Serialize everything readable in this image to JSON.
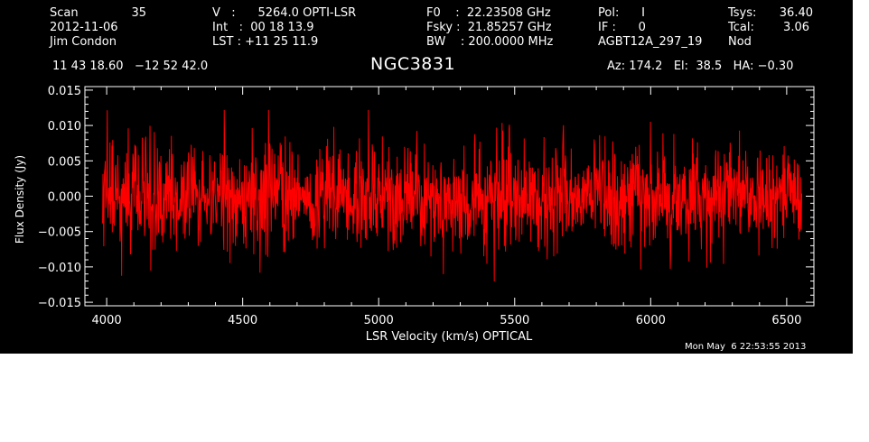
{
  "header": {
    "scan_label": "Scan",
    "scan_value": "35",
    "date": "2012-11-06",
    "observer": "Jim Condon",
    "velocity": "V   :      5264.0 OPTI-LSR",
    "integration": "Int   :  00 18 13.9",
    "lst": "LST : +11 25 11.9",
    "f0": "F0    :  22.23508 GHz",
    "fsky": "Fsky :  21.85257 GHz",
    "bw": "BW    : 200.0000 MHz",
    "pol": "Pol:      I",
    "if": "IF :      0",
    "project": "AGBT12A_297_19",
    "tsys_label": "Tsys:",
    "tsys_value": "36.40",
    "tcal_label": "Tcal:",
    "tcal_value": "3.06",
    "mode": "Nod",
    "coords": "11 43 18.60   −12 52 42.0",
    "source": "NGC3831",
    "pointing": "Az: 174.2   El:  38.5   HA: −0.30"
  },
  "timestamp": "Mon May  6 22:53:55 2013",
  "colors": {
    "background": "#000000",
    "foreground": "#ffffff",
    "trace": "#ff0000"
  },
  "chart_data": {
    "type": "line",
    "xlabel": "LSR Velocity (km/s) OPTICAL",
    "ylabel": "Flux Density (Jy)",
    "xlim": [
      3920,
      6600
    ],
    "ylim": [
      -0.0155,
      0.0155
    ],
    "x_range": [
      3985,
      6555
    ],
    "x_ticks": [
      4000,
      4500,
      5000,
      5500,
      6000,
      6500
    ],
    "x_tick_labels": [
      "4000",
      "4500",
      "5000",
      "5500",
      "6000",
      "6500"
    ],
    "y_ticks": [
      -0.015,
      -0.01,
      -0.005,
      0.0,
      0.005,
      0.01,
      0.015
    ],
    "y_tick_labels": [
      "−0.015",
      "−0.010",
      "−0.005",
      "0.000",
      "0.005",
      "0.010",
      "0.015"
    ],
    "series": [
      {
        "color": "#ff0000",
        "points": 1800,
        "mean": 0.0,
        "rms": 0.0037,
        "min": -0.0125,
        "max": 0.0122
      }
    ],
    "grid": false,
    "legend": "none"
  }
}
